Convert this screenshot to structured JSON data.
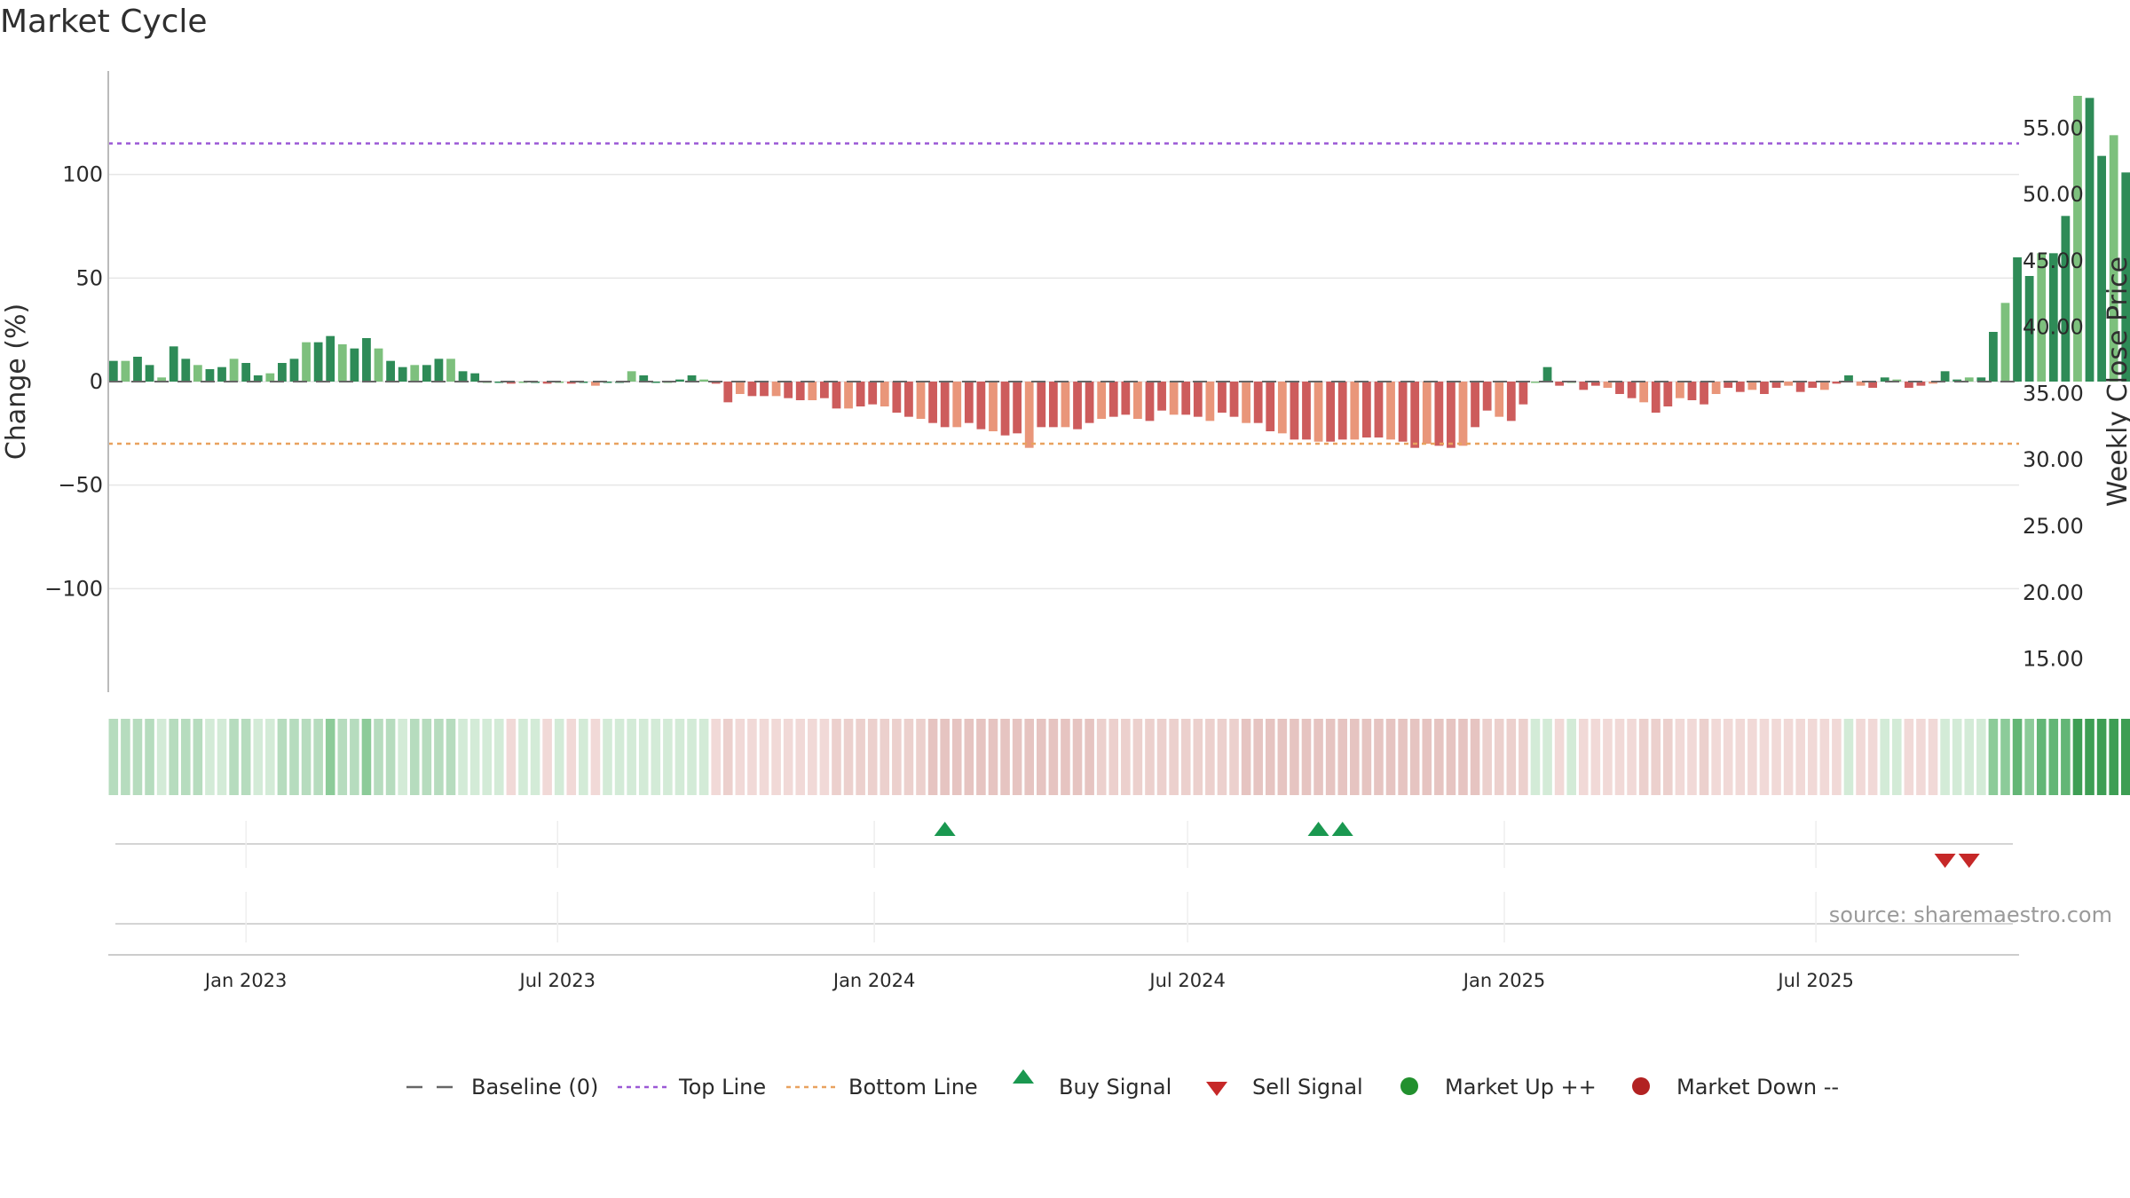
{
  "chart_data": {
    "type": "bar",
    "title": "Market Cycle",
    "ylabel": "Change (%)",
    "y2label": "Weekly Close Price",
    "ylim": [
      -150,
      150
    ],
    "y2lim": [
      12.5,
      59.3
    ],
    "yticks": [
      100,
      50,
      0,
      -50,
      -100
    ],
    "ytick_labels": [
      "100",
      "50",
      "0",
      "−50",
      "−100"
    ],
    "y2ticks": [
      55,
      50,
      45,
      40,
      35,
      30,
      25,
      20,
      15
    ],
    "y2tick_labels": [
      "55.00",
      "50.00",
      "45.00",
      "40.00",
      "35.00",
      "30.00",
      "25.00",
      "20.00",
      "15.00"
    ],
    "xlim": [
      "2022-10-13",
      "2025-10-27"
    ],
    "xticks": [
      "2023-01-01",
      "2023-07-01",
      "2024-01-01",
      "2024-07-01",
      "2025-01-01",
      "2025-07-01"
    ],
    "xtick_labels": [
      "Jan 2023",
      "Jul 2023",
      "Jan 2024",
      "Jul 2024",
      "Jan 2025",
      "Jul 2025"
    ],
    "start_week": "2022-10-16",
    "top_line": 115,
    "bottom_line": -30,
    "values": [
      10,
      10,
      12,
      8,
      2,
      17,
      11,
      8,
      6,
      7,
      11,
      9,
      3,
      4,
      9,
      11,
      19,
      19,
      22,
      18,
      16,
      21,
      16,
      10,
      7,
      8,
      8,
      11,
      11,
      5,
      4,
      0,
      0,
      -1,
      0,
      0,
      -1,
      0,
      -1,
      0,
      -2,
      0,
      0,
      5,
      3,
      0,
      0,
      1,
      3,
      1,
      -1,
      -10,
      -6,
      -7,
      -7,
      -7,
      -8,
      -9,
      -9,
      -8,
      -13,
      -13,
      -12,
      -11,
      -12,
      -15,
      -17,
      -18,
      -20,
      -22,
      -22,
      -20,
      -23,
      -24,
      -26,
      -25,
      -32,
      -22,
      -22,
      -22,
      -23,
      -20,
      -18,
      -17,
      -16,
      -18,
      -19,
      -14,
      -16,
      -16,
      -17,
      -19,
      -15,
      -17,
      -20,
      -20,
      -24,
      -25,
      -28,
      -28,
      -29,
      -29,
      -28,
      -28,
      -27,
      -27,
      -28,
      -29,
      -32,
      -30,
      -31,
      -32,
      -31,
      -22,
      -14,
      -17,
      -19,
      -11,
      0,
      7,
      -2,
      0,
      -4,
      -2,
      -3,
      -6,
      -8,
      -10,
      -15,
      -12,
      -8,
      -9,
      -11,
      -6,
      -3,
      -5,
      -4,
      -6,
      -3,
      -2,
      -5,
      -3,
      -4,
      -1,
      3,
      -2,
      -3,
      2,
      1,
      -3,
      -2,
      -1,
      5,
      1,
      2,
      2,
      24,
      38,
      60,
      51,
      62,
      62,
      80,
      138,
      137,
      109,
      119,
      101
    ],
    "price_color": "#3b4a6b",
    "heat_colors": {
      "up_weak": "#d3ebd7",
      "up_mild": "#c4e4ca",
      "up_mid": "#b6dcbe",
      "up_strong": "#8ccb99",
      "up_max": "#3e9e54",
      "up_high": "#63b676",
      "down_weak": "#f1d9d7",
      "down_mild": "#ecd0cd",
      "down_mid": "#e6c4c1"
    },
    "buy_signals": [
      "2024-02-11",
      "2024-09-15",
      "2024-09-29"
    ],
    "sell_signals": [
      "2025-09-14",
      "2025-09-28"
    ],
    "colors": {
      "up_dark": "#2e8b57",
      "up_light": "#7dc07d",
      "down_dark": "#cd5c5c",
      "down_light": "#e9967a",
      "top_line": "#9b59d6",
      "bottom_line": "#e9a25f",
      "buy": "#1a9850",
      "sell": "#c62828",
      "market_up": "#22902e",
      "market_down": "#b22222",
      "baseline": "#666666"
    },
    "legend": [
      {
        "label": "Baseline (0)",
        "symbol": "dash"
      },
      {
        "label": "Top Line",
        "symbol": "purple-dotted"
      },
      {
        "label": "Bottom Line",
        "symbol": "orange-dotted"
      },
      {
        "label": "Buy Signal",
        "symbol": "triangle-up"
      },
      {
        "label": "Sell Signal",
        "symbol": "triangle-down"
      },
      {
        "label": "Market Up ++",
        "symbol": "green-dot"
      },
      {
        "label": "Market Down --",
        "symbol": "red-dot"
      }
    ],
    "legend_placement": "bottom-center",
    "source": "source: sharemaestro.com",
    "grid": true
  }
}
